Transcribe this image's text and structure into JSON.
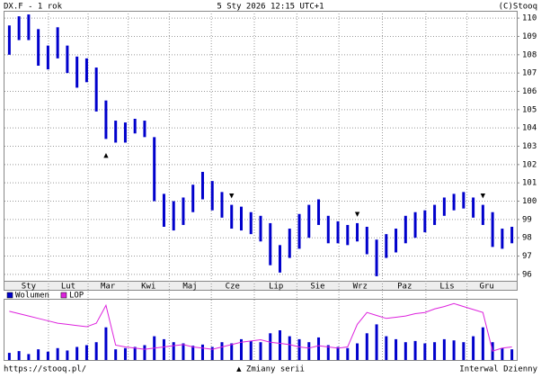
{
  "header": {
    "symbol": "DX.F - 1 rok",
    "date": "5 Sty 2026 12:15 UTC+1",
    "copyright": "(C)Stooq"
  },
  "chart_data": [
    {
      "type": "range",
      "color": "#0000cc",
      "grid": true,
      "high": [
        109.6,
        110.1,
        110.2,
        109.4,
        108.5,
        109.5,
        108.5,
        107.9,
        107.8,
        107.3,
        105.5,
        104.4,
        104.3,
        104.5,
        104.4,
        103.5,
        100.4,
        100.0,
        100.2,
        100.9,
        101.6,
        101.1,
        100.5,
        99.8,
        99.7,
        99.4,
        99.2,
        98.8,
        97.6,
        98.5,
        99.3,
        99.8,
        100.1,
        99.2,
        98.9,
        98.7,
        98.8,
        98.6,
        97.9,
        98.2,
        98.5,
        99.2,
        99.4,
        99.5,
        99.8,
        100.2,
        100.4,
        100.5,
        100.2,
        99.8,
        99.4,
        98.5,
        98.6
      ],
      "low": [
        108.0,
        108.8,
        108.8,
        107.4,
        107.2,
        107.8,
        107.0,
        106.2,
        106.5,
        104.9,
        103.4,
        103.2,
        103.2,
        103.7,
        103.5,
        100.0,
        98.6,
        98.4,
        98.7,
        99.4,
        100.1,
        99.5,
        99.1,
        98.5,
        98.4,
        98.2,
        97.8,
        96.5,
        96.1,
        96.9,
        97.4,
        98.0,
        98.7,
        97.7,
        97.7,
        97.6,
        97.8,
        97.1,
        95.9,
        96.9,
        97.2,
        97.7,
        98.0,
        98.3,
        98.7,
        99.2,
        99.5,
        99.6,
        99.1,
        98.7,
        97.5,
        97.4,
        97.7
      ],
      "ylim": [
        95.65,
        110.4
      ],
      "yticks": [
        96,
        97,
        98,
        99,
        100,
        101,
        102,
        103,
        104,
        105,
        106,
        107,
        108,
        109,
        110
      ],
      "xlim": [
        -0.5,
        52.5
      ],
      "xticks": [
        {
          "value": 2.0,
          "label": "Sty"
        },
        {
          "value": 6.1,
          "label": "Lut"
        },
        {
          "value": 10.2,
          "label": "Mar"
        },
        {
          "value": 14.4,
          "label": "Kwi"
        },
        {
          "value": 18.7,
          "label": "Maj"
        },
        {
          "value": 23.1,
          "label": "Cze"
        },
        {
          "value": 27.6,
          "label": "Lip"
        },
        {
          "value": 31.9,
          "label": "Sie"
        },
        {
          "value": 36.3,
          "label": "Wrz"
        },
        {
          "value": 40.9,
          "label": "Paz"
        },
        {
          "value": 45.3,
          "label": "Lis"
        },
        {
          "value": 49.4,
          "label": "Gru"
        }
      ],
      "events": [
        {
          "x": 10,
          "label": "▲"
        },
        {
          "x": 23,
          "label": "▼"
        },
        {
          "x": 36,
          "label": "▼"
        },
        {
          "x": 49,
          "label": "▼"
        }
      ]
    },
    {
      "type": "volume",
      "ylim": [
        0,
        100
      ],
      "series": [
        {
          "name": "Wolumen",
          "color": "#0000cc",
          "values": [
            12,
            15,
            10,
            18,
            14,
            20,
            16,
            22,
            25,
            30,
            55,
            18,
            20,
            22,
            25,
            40,
            35,
            30,
            28,
            24,
            26,
            22,
            30,
            28,
            35,
            32,
            30,
            45,
            50,
            40,
            35,
            30,
            38,
            25,
            22,
            20,
            28,
            45,
            60,
            40,
            35,
            30,
            32,
            28,
            30,
            35,
            33,
            30,
            40,
            55,
            30,
            20,
            18
          ]
        },
        {
          "name": "LOP",
          "color": "#dd22dd",
          "values": [
            82,
            78,
            74,
            70,
            66,
            62,
            60,
            58,
            56,
            62,
            92,
            25,
            22,
            20,
            18,
            20,
            22,
            24,
            26,
            22,
            20,
            18,
            22,
            26,
            30,
            32,
            34,
            30,
            28,
            26,
            22,
            20,
            24,
            22,
            20,
            22,
            60,
            80,
            75,
            70,
            72,
            74,
            78,
            80,
            86,
            90,
            95,
            90,
            85,
            80,
            15,
            20,
            22
          ]
        }
      ]
    }
  ],
  "footer": {
    "url": "https://stooq.pl/",
    "note": "▲ Zmiany serii",
    "interval": "Interwal Dzienny"
  }
}
